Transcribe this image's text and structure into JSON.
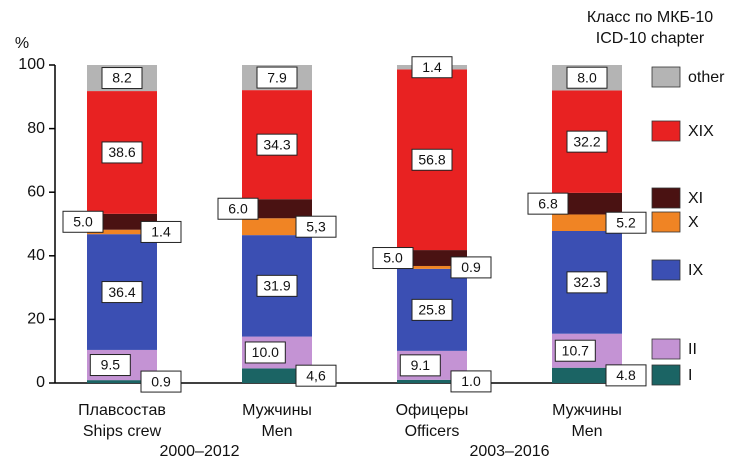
{
  "chart_data": {
    "type": "stacked_bar",
    "y_label": "%",
    "legend_title": [
      "Класс по МКБ-10",
      "ICD-10 chapter"
    ],
    "categories": [
      [
        "Плавсостав",
        "Ships crew"
      ],
      [
        "Мужчины",
        "Men"
      ],
      [
        "Офицеры",
        "Officers"
      ],
      [
        "Мужчины",
        "Men"
      ]
    ],
    "x_groups": [
      "2000–2012",
      "2003–2016"
    ],
    "ylim": [
      0,
      100
    ],
    "yticks": [
      0,
      20,
      40,
      60,
      80,
      100
    ],
    "series": [
      {
        "name": "I",
        "color": "#1b6464",
        "values": [
          0.9,
          4.6,
          1.0,
          4.8
        ],
        "value_labels": [
          "0.9",
          "4,6",
          "1.0",
          "4.8"
        ]
      },
      {
        "name": "II",
        "color": "#c493d4",
        "values": [
          9.5,
          10.0,
          9.1,
          10.7
        ],
        "value_labels": [
          "9.5",
          "10.0",
          "9.1",
          "10.7"
        ]
      },
      {
        "name": "IX",
        "color": "#3b4fb3",
        "values": [
          36.4,
          31.9,
          25.8,
          32.3
        ],
        "value_labels": [
          "36.4",
          "31.9",
          "25.8",
          "32.3"
        ]
      },
      {
        "name": "X",
        "color": "#f08424",
        "values": [
          1.4,
          5.3,
          0.9,
          5.2
        ],
        "value_labels": [
          "1.4",
          "5,3",
          "0.9",
          "5.2"
        ]
      },
      {
        "name": "XI",
        "color": "#4a1212",
        "values": [
          5.0,
          6.0,
          5.0,
          6.8
        ],
        "value_labels": [
          "5.0",
          "6.0",
          "5.0",
          "6.8"
        ]
      },
      {
        "name": "XIX",
        "color": "#e82222",
        "values": [
          38.6,
          34.3,
          56.8,
          32.2
        ],
        "value_labels": [
          "38.6",
          "34.3",
          "56.8",
          "32.2"
        ]
      },
      {
        "name": "other",
        "color": "#b4b4b4",
        "values": [
          8.2,
          7.9,
          1.4,
          8.0
        ],
        "value_labels": [
          "8.2",
          "7.9",
          "1.4",
          "8.0"
        ]
      }
    ],
    "legend": "right"
  }
}
